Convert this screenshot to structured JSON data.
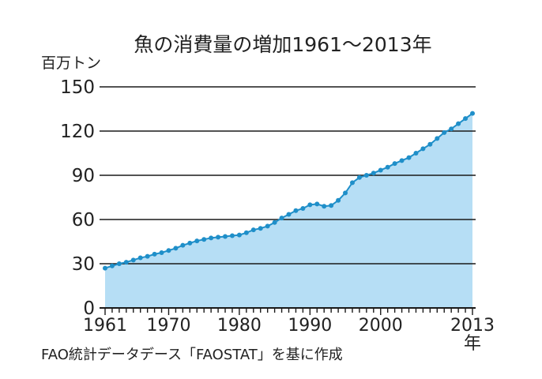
{
  "chart_data": {
    "type": "area",
    "title": "魚の消費量の増加1961〜2013年",
    "ylabel": "百万トン",
    "xunit": "年",
    "source": "FAO統計データデース「FAOSTAT」を基に作成",
    "ylim": [
      0,
      150
    ],
    "yticks": [
      0,
      30,
      60,
      90,
      120,
      150
    ],
    "xlim": [
      1961,
      2013
    ],
    "xticks": [
      1961,
      1970,
      1980,
      1990,
      2000,
      2013
    ],
    "grid": true,
    "colors": {
      "area": "#b6def5",
      "line": "#1f8fc9"
    },
    "x": [
      1961,
      1962,
      1963,
      1964,
      1965,
      1966,
      1967,
      1968,
      1969,
      1970,
      1971,
      1972,
      1973,
      1974,
      1975,
      1976,
      1977,
      1978,
      1979,
      1980,
      1981,
      1982,
      1983,
      1984,
      1985,
      1986,
      1987,
      1988,
      1989,
      1990,
      1991,
      1992,
      1993,
      1994,
      1995,
      1996,
      1997,
      1998,
      1999,
      2000,
      2001,
      2002,
      2003,
      2004,
      2005,
      2006,
      2007,
      2008,
      2009,
      2010,
      2011,
      2012,
      2013
    ],
    "y": [
      27,
      28.5,
      30,
      31,
      32.5,
      34,
      35,
      36.5,
      37.5,
      39,
      40.5,
      42.5,
      44,
      45.5,
      46.5,
      47.5,
      48,
      48.5,
      49,
      49.5,
      51,
      53,
      54,
      55.5,
      58,
      61,
      63.5,
      66,
      67.5,
      70,
      70.5,
      69,
      69.5,
      73,
      78,
      85,
      88.5,
      90,
      91.5,
      93.5,
      95.5,
      98,
      100,
      102,
      105,
      108,
      111,
      115,
      119,
      121.5,
      125,
      128.5,
      132
    ]
  }
}
